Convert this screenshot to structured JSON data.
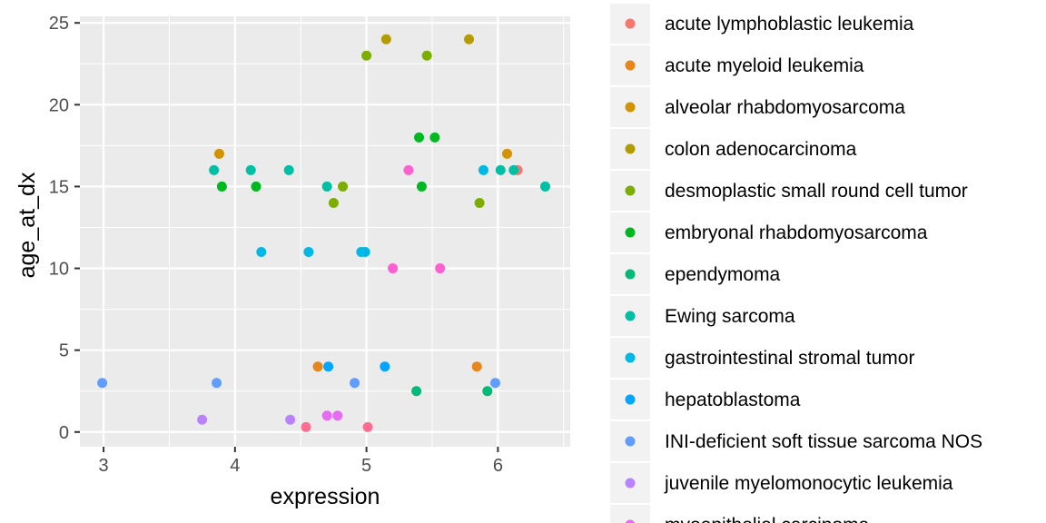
{
  "chart_data": {
    "type": "scatter",
    "xlabel": "expression",
    "ylabel": "age_at_dx",
    "xlim": [
      2.82,
      6.55
    ],
    "ylim": [
      -0.9,
      25.4
    ],
    "x_ticks": [
      3,
      4,
      5,
      6
    ],
    "y_ticks": [
      0,
      5,
      10,
      15,
      20,
      25
    ],
    "grid": true,
    "legend_position": "right",
    "series": [
      {
        "name": "acute lymphoblastic leukemia",
        "color": "#F8766D",
        "points": [
          [
            6.15,
            16
          ]
        ]
      },
      {
        "name": "acute myeloid leukemia",
        "color": "#E7861B",
        "points": [
          [
            4.63,
            4
          ],
          [
            5.84,
            4
          ]
        ]
      },
      {
        "name": "alveolar rhabdomyosarcoma",
        "color": "#D19300",
        "points": [
          [
            3.88,
            17
          ],
          [
            6.07,
            17
          ]
        ]
      },
      {
        "name": "colon adenocarcinoma",
        "color": "#B49C00",
        "points": [
          [
            5.15,
            24
          ],
          [
            5.78,
            24
          ]
        ]
      },
      {
        "name": "desmoplastic small round cell tumor",
        "color": "#7CAE00",
        "points": [
          [
            5.0,
            23
          ],
          [
            5.46,
            23
          ],
          [
            4.75,
            14
          ],
          [
            4.82,
            15
          ],
          [
            5.86,
            14
          ]
        ]
      },
      {
        "name": "embryonal rhabdomyosarcoma",
        "color": "#00B81F",
        "points": [
          [
            3.9,
            15
          ],
          [
            4.16,
            15
          ],
          [
            5.4,
            18
          ],
          [
            5.52,
            18
          ],
          [
            5.42,
            15
          ]
        ]
      },
      {
        "name": "ependymoma",
        "color": "#00BB78",
        "points": [
          [
            5.38,
            2.5
          ],
          [
            5.92,
            2.5
          ]
        ]
      },
      {
        "name": "Ewing sarcoma",
        "color": "#00BFA4",
        "points": [
          [
            3.84,
            16
          ],
          [
            4.12,
            16
          ],
          [
            4.41,
            16
          ],
          [
            4.7,
            15
          ],
          [
            6.02,
            16
          ],
          [
            6.12,
            16
          ],
          [
            6.36,
            15
          ]
        ]
      },
      {
        "name": "gastrointestinal stromal tumor",
        "color": "#00B8E5",
        "points": [
          [
            4.2,
            11
          ],
          [
            4.56,
            11
          ],
          [
            4.96,
            11
          ],
          [
            4.99,
            11
          ],
          [
            5.89,
            16
          ]
        ]
      },
      {
        "name": "hepatoblastoma",
        "color": "#00A6FF",
        "points": [
          [
            4.71,
            4
          ],
          [
            5.14,
            4
          ]
        ]
      },
      {
        "name": "INI-deficient soft tissue sarcoma NOS",
        "color": "#619CFF",
        "points": [
          [
            2.99,
            3
          ],
          [
            3.86,
            3
          ],
          [
            4.91,
            3
          ],
          [
            5.98,
            3
          ]
        ]
      },
      {
        "name": "juvenile myelomonocytic leukemia",
        "color": "#B983FF",
        "points": [
          [
            3.75,
            0.75
          ],
          [
            4.42,
            0.75
          ]
        ]
      },
      {
        "name": "myoepithelial carcinoma",
        "color": "#E76BF3",
        "points": [
          [
            4.7,
            1
          ],
          [
            4.78,
            1
          ]
        ]
      },
      {
        "name": "",
        "color": "#FD61D1",
        "points": [
          [
            5.2,
            10
          ],
          [
            5.56,
            10
          ],
          [
            5.32,
            16
          ]
        ]
      },
      {
        "name": "",
        "color": "#FF6C91",
        "points": [
          [
            4.54,
            0.3
          ],
          [
            5.01,
            0.3
          ]
        ]
      }
    ]
  }
}
